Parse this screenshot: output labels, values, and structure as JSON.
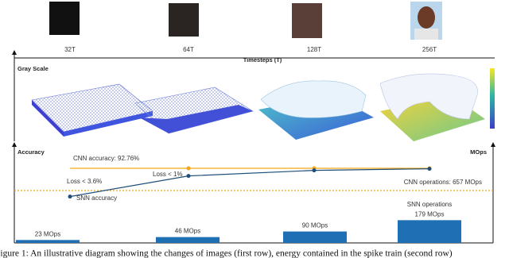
{
  "figure": {
    "top_axis_label": "Timesteps (T)",
    "left_axis_label": "Gray Scale",
    "timesteps": [
      "32T",
      "64T",
      "128T",
      "256T"
    ],
    "accuracy_axis_label": "Accuracy",
    "mops_axis_label": "MOps",
    "cnn_accuracy": {
      "value": 92.76,
      "label": "CNN accuracy: 92.76%",
      "color": "#f2a618"
    },
    "cnn_operations_label": "CNN operations: 657 MOps",
    "snn_accuracy": {
      "name": "SNN accuracy",
      "color": "#1f4e79",
      "values": [
        89.2,
        91.8,
        92.5,
        92.7
      ]
    },
    "loss_labels": [
      "Loss < 3.6%",
      "Loss < 1%"
    ],
    "snn_operations_label": "SNN operations",
    "snn_operations": {
      "color": "#1f6fb5",
      "values": [
        23,
        46,
        90,
        179
      ],
      "value_labels": [
        "23 MOps",
        "46 MOps",
        "90 MOps",
        "179 MOps"
      ]
    },
    "caption": "Figure 1: An illustrative diagram showing the changes of images (first row), energy contained in the spike train (second row)"
  }
}
